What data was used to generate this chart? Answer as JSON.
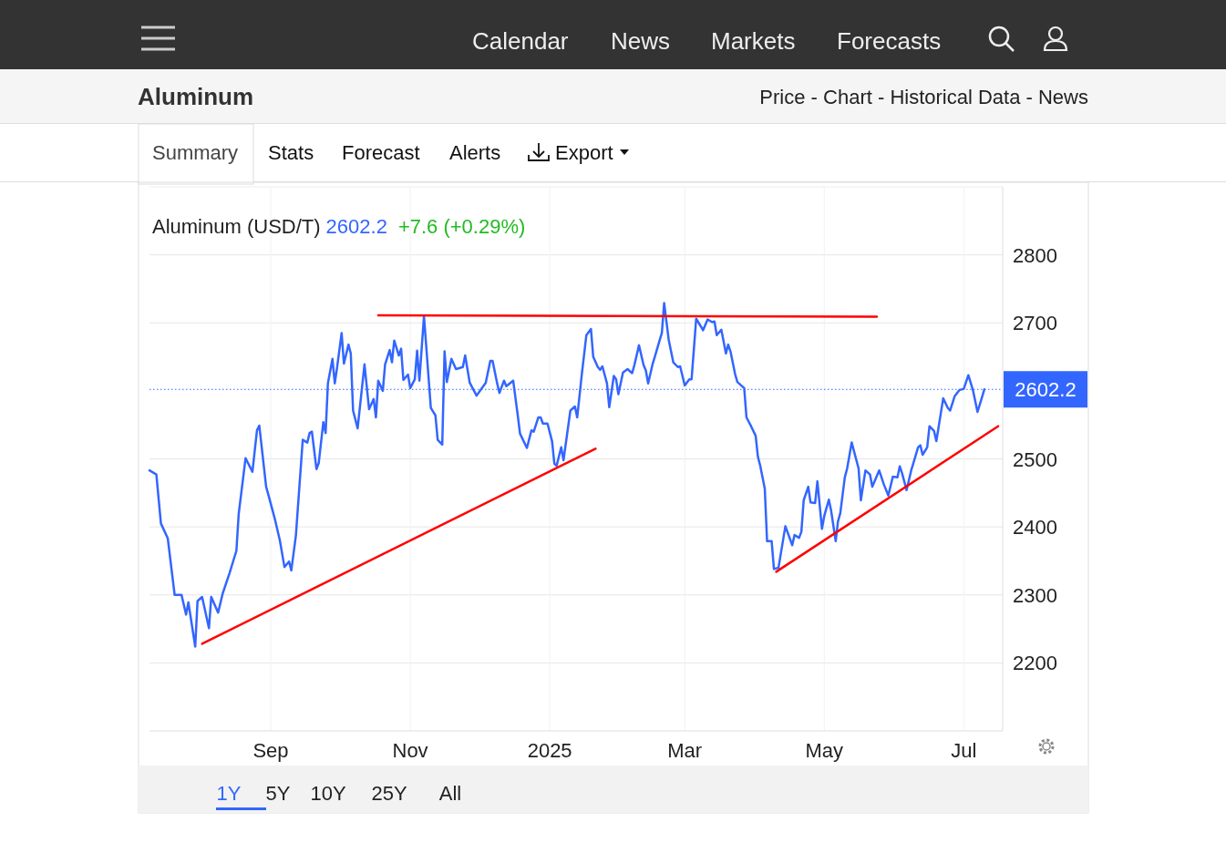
{
  "chart_data": {
    "type": "line",
    "title": "Aluminum (USD/T)",
    "annotations": [
      "2602.2",
      "+7.6 (+0.29%)",
      "Calendar",
      "News",
      "Markets",
      "Forecasts",
      "Aluminum",
      "Price - Chart - Historical Data - News",
      "Summary",
      "Stats",
      "Forecast",
      "Alerts",
      "Export",
      "1Y",
      "5Y",
      "10Y",
      "25Y",
      "All"
    ],
    "x": [
      "2024-07-10",
      "2024-07-13",
      "2024-07-15",
      "2024-07-18",
      "2024-07-21",
      "2024-07-24",
      "2024-07-26",
      "2024-07-27",
      "2024-07-30",
      "2024-07-31",
      "2024-08-02",
      "2024-08-05",
      "2024-08-06",
      "2024-08-09",
      "2024-08-11",
      "2024-08-14",
      "2024-08-17",
      "2024-08-18",
      "2024-08-21",
      "2024-08-24",
      "2024-08-26",
      "2024-08-27",
      "2024-08-30",
      "2024-08-31",
      "2024-09-03",
      "2024-09-05",
      "2024-09-07",
      "2024-09-09",
      "2024-09-10",
      "2024-09-12",
      "2024-09-15",
      "2024-09-17",
      "2024-09-18",
      "2024-09-19",
      "2024-09-21",
      "2024-09-22",
      "2024-09-24",
      "2024-09-25",
      "2024-09-26",
      "2024-09-28",
      "2024-09-29",
      "2024-09-30",
      "2024-10-02",
      "2024-10-03",
      "2024-10-05",
      "2024-10-06",
      "2024-10-07",
      "2024-10-09",
      "2024-10-12",
      "2024-10-14",
      "2024-10-16",
      "2024-10-17",
      "2024-10-18",
      "2024-10-20",
      "2024-10-21",
      "2024-10-23",
      "2024-10-24",
      "2024-10-25",
      "2024-10-27",
      "2024-10-28",
      "2024-10-29",
      "2024-10-31",
      "2024-11-01",
      "2024-11-03",
      "2024-11-04",
      "2024-11-05",
      "2024-11-07",
      "2024-11-10",
      "2024-11-12",
      "2024-11-13",
      "2024-11-15",
      "2024-11-16",
      "2024-11-17",
      "2024-11-19",
      "2024-11-21",
      "2024-11-24",
      "2024-11-25",
      "2024-11-27",
      "2024-11-30",
      "2024-12-04",
      "2024-12-06",
      "2024-12-07",
      "2024-12-09",
      "2024-12-10",
      "2024-12-12",
      "2024-12-13",
      "2024-12-16",
      "2024-12-18",
      "2024-12-19",
      "2024-12-22",
      "2024-12-24",
      "2024-12-25",
      "2024-12-27",
      "2024-12-28",
      "2024-12-29",
      "2024-12-31",
      "2025-01-02",
      "2025-01-03",
      "2025-01-04",
      "2025-01-06",
      "2025-01-07",
      "2025-01-10",
      "2025-01-12",
      "2025-01-13",
      "2025-01-15",
      "2025-01-17",
      "2025-01-19",
      "2025-01-20",
      "2025-01-22",
      "2025-01-23",
      "2025-01-24",
      "2025-01-26",
      "2025-01-27",
      "2025-01-29",
      "2025-01-30",
      "2025-01-31",
      "2025-02-02",
      "2025-02-04",
      "2025-02-06",
      "2025-02-07",
      "2025-02-09",
      "2025-02-11",
      "2025-02-12",
      "2025-02-13",
      "2025-02-15",
      "2025-02-16",
      "2025-02-18",
      "2025-02-19",
      "2025-02-20",
      "2025-02-22",
      "2025-02-24",
      "2025-02-26",
      "2025-02-27",
      "2025-03-01",
      "2025-03-03",
      "2025-03-04",
      "2025-03-06",
      "2025-03-08",
      "2025-03-09",
      "2025-03-11",
      "2025-03-13",
      "2025-03-14",
      "2025-03-15",
      "2025-03-17",
      "2025-03-19",
      "2025-03-20",
      "2025-03-21",
      "2025-03-23",
      "2025-03-24",
      "2025-03-26",
      "2025-03-27",
      "2025-03-28",
      "2025-03-30",
      "2025-04-01",
      "2025-04-02",
      "2025-04-03",
      "2025-04-05",
      "2025-04-06",
      "2025-04-08",
      "2025-04-09",
      "2025-04-11",
      "2025-04-14",
      "2025-04-17",
      "2025-04-18",
      "2025-04-20",
      "2025-04-21",
      "2025-04-22",
      "2025-04-24",
      "2025-04-25",
      "2025-04-27",
      "2025-04-28",
      "2025-04-30",
      "2025-05-01",
      "2025-05-03",
      "2025-05-04",
      "2025-05-06",
      "2025-05-07",
      "2025-05-08",
      "2025-05-10",
      "2025-05-11",
      "2025-05-13",
      "2025-05-16",
      "2025-05-17",
      "2025-05-19",
      "2025-05-21",
      "2025-05-22",
      "2025-05-25",
      "2025-05-27",
      "2025-05-29",
      "2025-05-31",
      "2025-06-02",
      "2025-06-03",
      "2025-06-04",
      "2025-06-06",
      "2025-06-08",
      "2025-06-09",
      "2025-06-11",
      "2025-06-12",
      "2025-06-13",
      "2025-06-15",
      "2025-06-16",
      "2025-06-18",
      "2025-06-19",
      "2025-06-22",
      "2025-06-24",
      "2025-06-25",
      "2025-06-27",
      "2025-06-29",
      "2025-07-01",
      "2025-07-03",
      "2025-07-05",
      "2025-07-07",
      "2025-07-09",
      "2025-07-10"
    ],
    "series": [
      {
        "color": "#3366ff",
        "values": [
          2483,
          2477,
          2405,
          2383,
          2300,
          2300,
          2271,
          2289,
          2224,
          2291,
          2297,
          2251,
          2297,
          2274,
          2302,
          2332,
          2365,
          2419,
          2501,
          2481,
          2542,
          2549,
          2459,
          2447,
          2409,
          2380,
          2341,
          2349,
          2336,
          2387,
          2528,
          2524,
          2538,
          2540,
          2485,
          2494,
          2554,
          2538,
          2611,
          2647,
          2611,
          2634,
          2685,
          2640,
          2668,
          2655,
          2571,
          2545,
          2639,
          2573,
          2588,
          2561,
          2615,
          2600,
          2639,
          2660,
          2642,
          2674,
          2652,
          2662,
          2616,
          2624,
          2604,
          2617,
          2659,
          2615,
          2710,
          2575,
          2564,
          2528,
          2521,
          2658,
          2613,
          2647,
          2632,
          2635,
          2652,
          2612,
          2593,
          2612,
          2644,
          2644,
          2611,
          2597,
          2615,
          2607,
          2615,
          2564,
          2537,
          2516,
          2542,
          2540,
          2561,
          2561,
          2552,
          2552,
          2526,
          2493,
          2490,
          2517,
          2498,
          2571,
          2577,
          2561,
          2624,
          2682,
          2691,
          2650,
          2635,
          2631,
          2636,
          2611,
          2576,
          2622,
          2617,
          2595,
          2627,
          2632,
          2626,
          2638,
          2667,
          2638,
          2630,
          2611,
          2640,
          2651,
          2674,
          2685,
          2729,
          2675,
          2642,
          2635,
          2636,
          2608,
          2617,
          2617,
          2706,
          2695,
          2689,
          2705,
          2701,
          2702,
          2682,
          2690,
          2655,
          2668,
          2658,
          2625,
          2613,
          2607,
          2604,
          2561,
          2548,
          2534,
          2503,
          2490,
          2456,
          2379,
          2379,
          2338,
          2340,
          2401,
          2373,
          2388,
          2384,
          2393,
          2439,
          2459,
          2436,
          2435,
          2467,
          2397,
          2416,
          2440,
          2424,
          2379,
          2408,
          2420,
          2473,
          2486,
          2524,
          2486,
          2439,
          2483,
          2477,
          2459,
          2483,
          2463,
          2446,
          2474,
          2473,
          2489,
          2479,
          2454,
          2483,
          2494,
          2517,
          2520,
          2506,
          2517,
          2548,
          2541,
          2526,
          2589,
          2575,
          2571,
          2592,
          2601,
          2603,
          2623,
          2601,
          2569,
          2591,
          2602.2
        ]
      },
      {
        "type": "line",
        "color": "#ff0000",
        "x": [
          "2024-08-02",
          "2025-01-21"
        ],
        "values": [
          2228,
          2515
        ]
      },
      {
        "type": "line",
        "color": "#ff0000",
        "x": [
          "2024-10-18",
          "2025-05-24"
        ],
        "values": [
          2711,
          2709
        ]
      },
      {
        "type": "line",
        "color": "#ff0000",
        "x": [
          "2025-04-10",
          "2025-07-16"
        ],
        "values": [
          2334,
          2548
        ]
      }
    ],
    "xlim": [
      "2024-07-10",
      "2025-07-18"
    ],
    "xticks": [
      {
        "value": "2024-09-01",
        "label": "Sep"
      },
      {
        "value": "2024-11-01",
        "label": "Nov"
      },
      {
        "value": "2025-01-01",
        "label": "2025"
      },
      {
        "value": "2025-03-01",
        "label": "Mar"
      },
      {
        "value": "2025-05-01",
        "label": "May"
      },
      {
        "value": "2025-07-01",
        "label": "Jul"
      }
    ],
    "ylim": [
      2100,
      2900
    ],
    "yticks": [
      2200,
      2300,
      2400,
      2500,
      2700,
      2800
    ],
    "ref_lines": [
      {
        "axis": "y",
        "value": 2602.2,
        "label": "2602.2",
        "color": "#3366ff",
        "line_style": "dotted"
      }
    ],
    "grid": true,
    "line_style": "solid"
  }
}
